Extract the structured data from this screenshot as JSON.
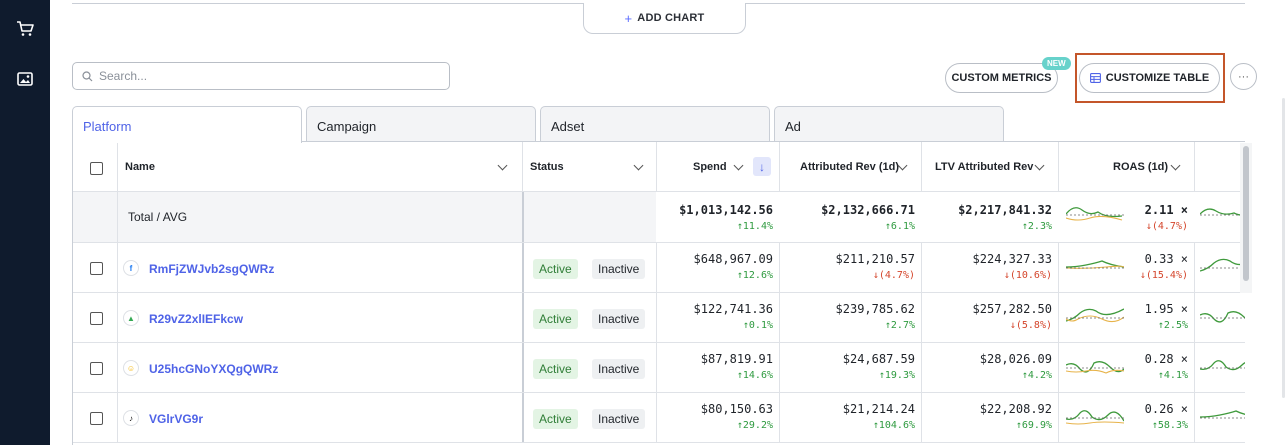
{
  "sidebar": {
    "icons": [
      "cart-icon",
      "image-icon"
    ]
  },
  "toolbar": {
    "add_chart_label": "ADD CHART",
    "search_placeholder": "Search...",
    "custom_metrics_label": "CUSTOM METRICS",
    "new_badge": "NEW",
    "customize_table_label": "CUSTOMIZE TABLE",
    "more_label": "···"
  },
  "tabs": [
    {
      "label": "Platform"
    },
    {
      "label": "Campaign"
    },
    {
      "label": "Adset"
    },
    {
      "label": "Ad"
    }
  ],
  "columns": {
    "name": "Name",
    "status": "Status",
    "spend": "Spend",
    "attributed_rev": "Attributed Rev (1d)",
    "ltv_attributed_rev": "LTV Attributed Rev",
    "roas": "ROAS (1d)"
  },
  "total": {
    "label": "Total / AVG",
    "spend": "$1,013,142.56",
    "spend_chg": "↑11.4%",
    "rev": "$2,132,666.71",
    "rev_chg": "↑6.1%",
    "ltv": "$2,217,841.32",
    "ltv_chg": "↑2.3%",
    "roas": "2.11 ×",
    "roas_chg": "↓(4.7%)"
  },
  "rows": [
    {
      "name": "RmFjZWJvb2sgQWRz",
      "logo": "f",
      "active": "Active",
      "inactive": "Inactive",
      "spend": "$648,967.09",
      "spend_chg": "↑12.6%",
      "rev": "$211,210.57",
      "rev_chg": "↓(4.7%)",
      "ltv": "$224,327.33",
      "ltv_chg": "↓(10.6%)",
      "roas": "0.33 ×",
      "roas_chg": "↓(15.4%)"
    },
    {
      "name": "R29vZ2xlIEFkcw",
      "logo": "▲",
      "active": "Active",
      "inactive": "Inactive",
      "spend": "$122,741.36",
      "spend_chg": "↑0.1%",
      "rev": "$239,785.62",
      "rev_chg": "↑2.7%",
      "ltv": "$257,282.50",
      "ltv_chg": "↓(5.8%)",
      "roas": "1.95 ×",
      "roas_chg": "↑2.5%"
    },
    {
      "name": "U25hcGNoYXQgQWRz",
      "logo": "☺",
      "active": "Active",
      "inactive": "Inactive",
      "spend": "$87,819.91",
      "spend_chg": "↑14.6%",
      "rev": "$24,687.59",
      "rev_chg": "↑19.3%",
      "ltv": "$28,026.09",
      "ltv_chg": "↑4.2%",
      "roas": "0.28 ×",
      "roas_chg": "↑4.1%"
    },
    {
      "name": "VGlrVG9r",
      "logo": "♪",
      "active": "Active",
      "inactive": "Inactive",
      "spend": "$80,150.63",
      "spend_chg": "↑29.2%",
      "rev": "$21,214.24",
      "rev_chg": "↑104.6%",
      "ltv": "$22,208.92",
      "ltv_chg": "↑69.9%",
      "roas": "0.26 ×",
      "roas_chg": "↑58.3%"
    }
  ],
  "colors": {
    "accent": "#4f63e7",
    "positive": "#2e9a3f",
    "negative": "#d4452b",
    "highlight": "#c4562a"
  }
}
